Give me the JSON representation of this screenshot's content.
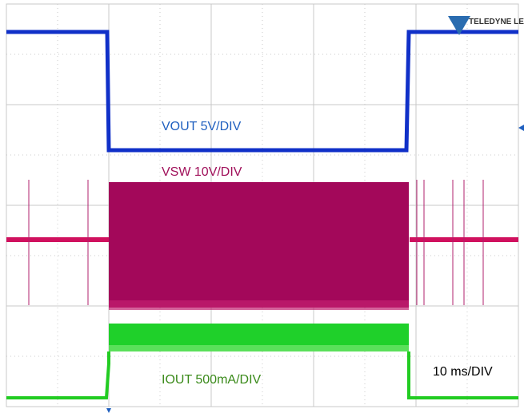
{
  "brand": "TELEDYNE LECROY",
  "labels": {
    "vout": "VOUT 5V/DIV",
    "vsw": "VSW 10V/DIV",
    "iout": "IOUT 500mA/DIV",
    "timebase": "10 ms/DIV"
  }
}
